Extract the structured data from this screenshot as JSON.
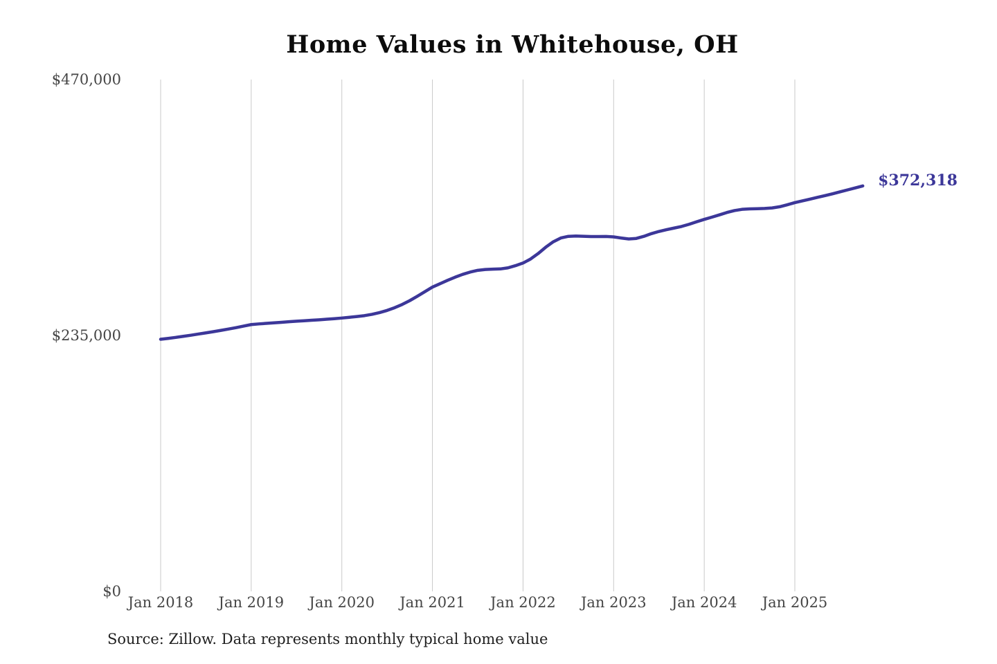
{
  "chart_data": {
    "type": "line",
    "title": "Home Values in Whitehouse, OH",
    "source_note": "Source: Zillow. Data represents monthly typical home value",
    "series_name": "Monthly typical home value",
    "line_color": "#3c3799",
    "last_value_label": "$372,318",
    "last_value": 372318,
    "grid": "vertical-only",
    "legend": "none",
    "ylim": [
      0,
      470000
    ],
    "y_ticks": [
      0,
      235000,
      470000
    ],
    "y_tick_labels": [
      "$0",
      "$235,000",
      "$470,000"
    ],
    "x_tick_labels": [
      "Jan 2018",
      "Jan 2019",
      "Jan 2020",
      "Jan 2021",
      "Jan 2022",
      "Jan 2023",
      "Jan 2024",
      "Jan 2025"
    ],
    "x": [
      "2018-01",
      "2018-02",
      "2018-03",
      "2018-04",
      "2018-05",
      "2018-06",
      "2018-07",
      "2018-08",
      "2018-09",
      "2018-10",
      "2018-11",
      "2018-12",
      "2019-01",
      "2019-02",
      "2019-03",
      "2019-04",
      "2019-05",
      "2019-06",
      "2019-07",
      "2019-08",
      "2019-09",
      "2019-10",
      "2019-11",
      "2019-12",
      "2020-01",
      "2020-02",
      "2020-03",
      "2020-04",
      "2020-05",
      "2020-06",
      "2020-07",
      "2020-08",
      "2020-09",
      "2020-10",
      "2020-11",
      "2020-12",
      "2021-01",
      "2021-02",
      "2021-03",
      "2021-04",
      "2021-05",
      "2021-06",
      "2021-07",
      "2021-08",
      "2021-09",
      "2021-10",
      "2021-11",
      "2021-12",
      "2022-01",
      "2022-02",
      "2022-03",
      "2022-04",
      "2022-05",
      "2022-06",
      "2022-07",
      "2022-08",
      "2022-09",
      "2022-10",
      "2022-11",
      "2022-12",
      "2023-01",
      "2023-02",
      "2023-03",
      "2023-04",
      "2023-05",
      "2023-06",
      "2023-07",
      "2023-08",
      "2023-09",
      "2023-10",
      "2023-11",
      "2023-12",
      "2024-01",
      "2024-02",
      "2024-03",
      "2024-04",
      "2024-05",
      "2024-06",
      "2024-07",
      "2024-08",
      "2024-09",
      "2024-10",
      "2024-11",
      "2024-12",
      "2025-01",
      "2025-02",
      "2025-03",
      "2025-04",
      "2025-05",
      "2025-06",
      "2025-07",
      "2025-08",
      "2025-09",
      "2025-10"
    ],
    "values": [
      231500,
      232300,
      233200,
      234200,
      235200,
      236300,
      237400,
      238500,
      239700,
      240900,
      242200,
      243600,
      245000,
      245600,
      246100,
      246600,
      247100,
      247600,
      248100,
      248500,
      249000,
      249400,
      249900,
      250400,
      251000,
      251700,
      252400,
      253200,
      254400,
      256000,
      258000,
      260500,
      263500,
      267000,
      271000,
      275200,
      279400,
      282500,
      285600,
      288500,
      291100,
      293200,
      294800,
      295600,
      295900,
      296100,
      297100,
      299100,
      301500,
      305200,
      310200,
      316000,
      321000,
      324500,
      326000,
      326300,
      326100,
      325800,
      325800,
      325900,
      325500,
      324500,
      323600,
      324100,
      326000,
      328500,
      330500,
      332100,
      333600,
      335100,
      337100,
      339400,
      341600,
      343600,
      345700,
      347900,
      349700,
      350800,
      351200,
      351400,
      351600,
      352100,
      353200,
      355000,
      357000,
      358600,
      360200,
      361800,
      363400,
      365100,
      366900,
      368700,
      370500,
      372318
    ]
  },
  "style": {
    "gridline_color": "#c9c9c9",
    "axis_label_color": "#454545",
    "title_color": "#0c0c0c",
    "source_color": "#1f1f1f",
    "background_color": "#ffffff"
  }
}
